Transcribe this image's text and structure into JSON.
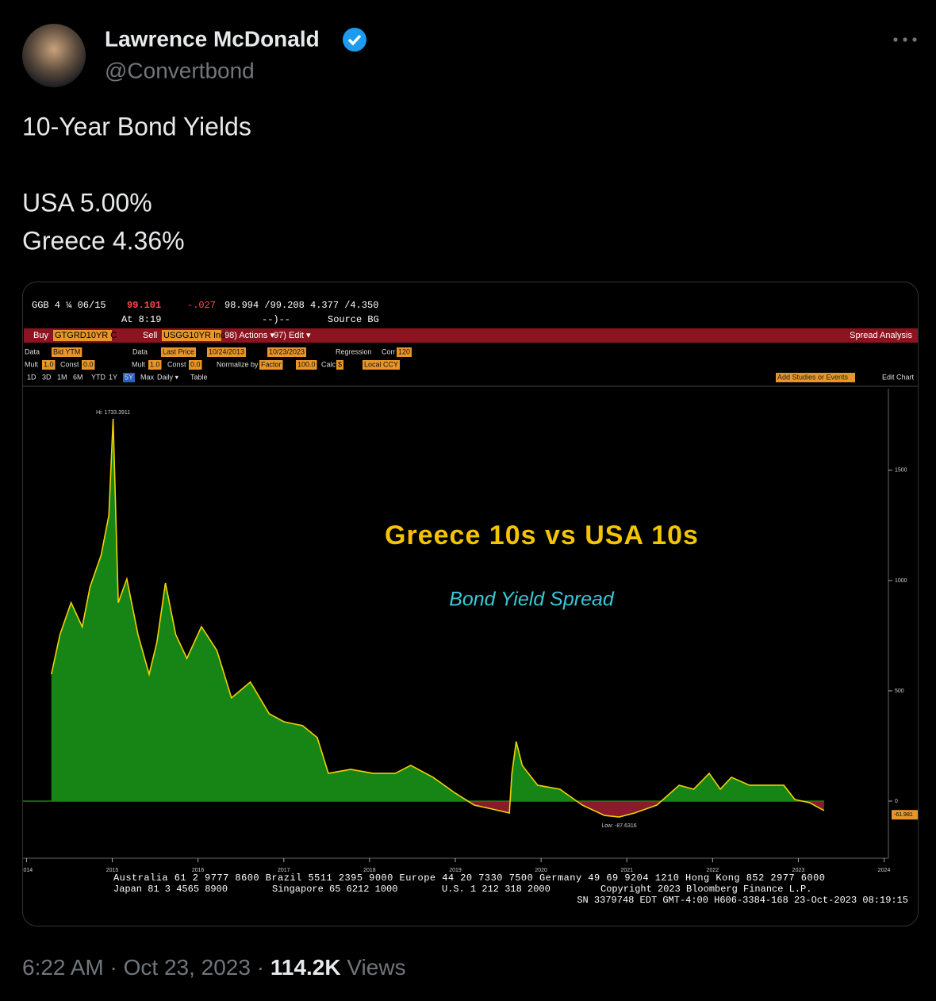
{
  "tweet": {
    "author": {
      "name": "Lawrence McDonald",
      "handle": "@Convertbond"
    },
    "text": [
      "10-Year Bond Yields",
      "USA 5.00%",
      "Greece 4.36%"
    ],
    "time": "6:22 AM",
    "separator": "·",
    "date": "Oct 23, 2023",
    "views": "114.2K",
    "views_label": "Views"
  },
  "terminal": {
    "quote": {
      "security": "GGB 4 ¼ 06/15",
      "price": "99.101",
      "change": "-.027",
      "range": "98.994 /99.208 4.377 /4.350",
      "time": "At 8:19",
      "arrow": "--)--",
      "source": "Source BG"
    },
    "menu": {
      "buy": "Buy",
      "buy_ticker": "GTGRD10YR C",
      "sell": "Sell",
      "sell_ticker": "USGG10YR Ind",
      "actions": "98) Actions ▾",
      "edit": "97) Edit ▾",
      "function": "Spread Analysis"
    },
    "row1": [
      "Data",
      "Bid YTM",
      "Data",
      "Last Price",
      "10/24/2013",
      "10/23/2023",
      "Regression",
      "Corr",
      "120"
    ],
    "row2": [
      "Mult",
      "1.0",
      "Const",
      "0.0",
      "Mult",
      "1.0",
      "Const",
      "0.0",
      "Normalize by",
      "Factor",
      "100.0",
      "Calc",
      "$",
      "Local CCY"
    ],
    "row3": [
      "1D",
      "3D",
      "1M",
      "6M",
      "YTD",
      "1Y",
      "5Y",
      "Max",
      "Daily ▾",
      "Table"
    ],
    "studies": "Add Studies or Events",
    "edit_chart": "Edit Chart",
    "footer": [
      "Australia 61 2 9777 8600 Brazil 5511 2395 9000 Europe 44 20 7330 7500 Germany 49 69 9204 1210 Hong Kong 852 2977 6000",
      "Japan 81 3 4565 8900",
      "Singapore 65 6212 1000",
      "U.S. 1 212 318 2000",
      "Copyright 2023 Bloomberg Finance L.P.",
      "SN 3379748 EDT  GMT-4:00 H606-3384-168 23-Oct-2023 08:19:15"
    ]
  },
  "chart_data": {
    "type": "area",
    "title": "Greece 10s vs USA 10s",
    "subtitle": "Bond Yield Spread",
    "hi_label": "Hi: 1733.3911",
    "low_label": "Low: -87.6316",
    "last_value": -61.981,
    "x": [
      2014.29,
      2014.39,
      2014.52,
      2014.65,
      2014.74,
      2014.87,
      2014.96,
      2015.01,
      2015.07,
      2015.17,
      2015.3,
      2015.43,
      2015.52,
      2015.62,
      2015.74,
      2015.87,
      2016.04,
      2016.22,
      2016.39,
      2016.61,
      2016.83,
      2017.0,
      2017.22,
      2017.39,
      2017.52,
      2017.78,
      2018.04,
      2018.3,
      2018.48,
      2018.74,
      2019.0,
      2019.22,
      2019.43,
      2019.63,
      2019.66,
      2019.71,
      2019.78,
      2019.96,
      2020.22,
      2020.48,
      2020.74,
      2020.91,
      2021.09,
      2021.35,
      2021.61,
      2021.78,
      2021.96,
      2022.09,
      2022.22,
      2022.43,
      2022.65,
      2022.83,
      2022.96,
      2023.13,
      2023.3
    ],
    "values": [
      575,
      755,
      900,
      790,
      970,
      1115,
      1295,
      1733,
      900,
      1007,
      755,
      575,
      719,
      989,
      755,
      647,
      791,
      683,
      468,
      540,
      396,
      360,
      342,
      288,
      126,
      144,
      126,
      126,
      162,
      108,
      36,
      -18,
      -36,
      -54,
      126,
      270,
      162,
      72,
      54,
      -18,
      -65,
      -72,
      -54,
      -18,
      72,
      54,
      126,
      54,
      108,
      72,
      72,
      72,
      7,
      -7,
      -43
    ],
    "xlim": [
      2013.95,
      2024.05
    ],
    "xticks": [
      2014,
      2015,
      2016,
      2017,
      2018,
      2019,
      2020,
      2021,
      2022,
      2023,
      2024
    ],
    "ylim": [
      -259,
      1870
    ],
    "yticks": [
      0,
      500,
      1000,
      1500
    ],
    "colors": {
      "line": "#f2d200",
      "above": "#168516",
      "below": "#8a1a2c"
    }
  }
}
